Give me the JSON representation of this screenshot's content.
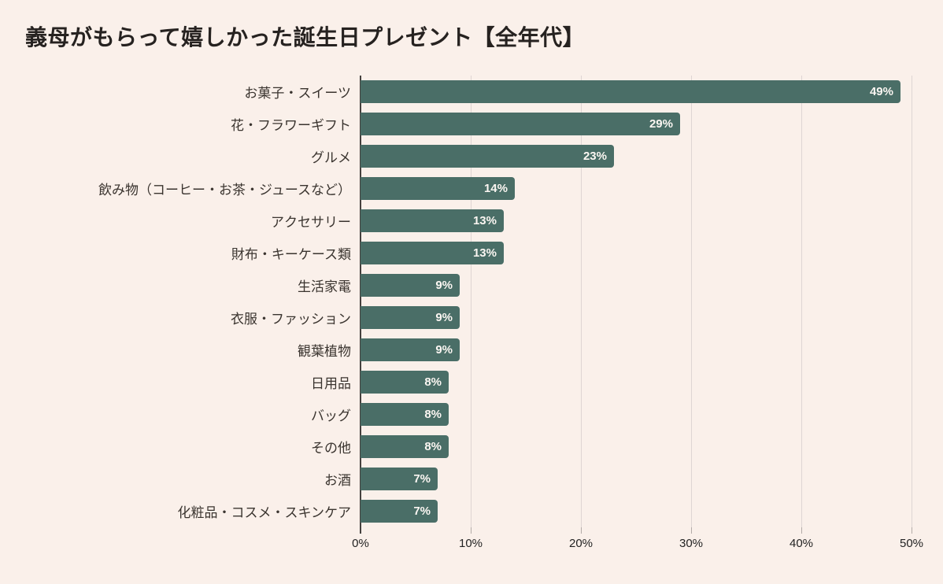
{
  "page": {
    "background_color": "#faf0ea"
  },
  "header": {
    "title": "義母がもらって嬉しかった誕生日プレゼント【全年代】"
  },
  "chart_data": {
    "type": "bar",
    "orientation": "horizontal",
    "title": "義母がもらって嬉しかった誕生日プレゼント【全年代】",
    "categories": [
      "お菓子・スイーツ",
      "花・フラワーギフト",
      "グルメ",
      "飲み物（コーヒー・お茶・ジュースなど）",
      "アクセサリー",
      "財布・キーケース類",
      "生活家電",
      "衣服・ファッション",
      "観葉植物",
      "日用品",
      "バッグ",
      "その他",
      "お酒",
      "化粧品・コスメ・スキンケア"
    ],
    "values": [
      49,
      29,
      23,
      14,
      13,
      13,
      9,
      9,
      9,
      8,
      8,
      8,
      7,
      7
    ],
    "value_labels": [
      "49%",
      "29%",
      "23%",
      "14%",
      "13%",
      "13%",
      "9%",
      "9%",
      "9%",
      "8%",
      "8%",
      "8%",
      "7%",
      "7%"
    ],
    "x_ticks": [
      "0%",
      "10%",
      "20%",
      "30%",
      "40%",
      "50%"
    ],
    "xlim": [
      0,
      50
    ],
    "xlabel": "",
    "ylabel": "",
    "bar_color": "#4a6e67",
    "value_label_color": "#fbf6f2",
    "gridline_color": "#ded5d3",
    "axis_line_color": "#45413e",
    "grid": "vertical lines every 10%",
    "legend_position": "none"
  }
}
